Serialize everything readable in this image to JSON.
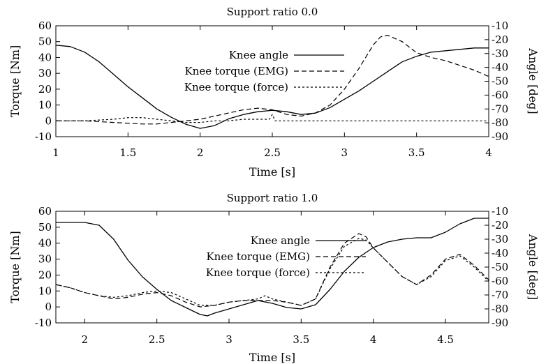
{
  "chart_data": [
    {
      "type": "line",
      "title": "Support ratio 0.0",
      "xlabel": "Time [s]",
      "ylabel_left": "Torque [Nm]",
      "ylabel_right": "Angle [deg]",
      "xlim": [
        1,
        4
      ],
      "ylim_left": [
        -10,
        60
      ],
      "ylim_right": [
        -90,
        -10
      ],
      "xticks": [
        "1",
        "1.5",
        "2",
        "2.5",
        "3",
        "3.5",
        "4"
      ],
      "yticks_left": [
        "-10",
        "0",
        "10",
        "20",
        "30",
        "40",
        "50",
        "60"
      ],
      "yticks_right": [
        "-90",
        "-80",
        "-70",
        "-60",
        "-50",
        "-40",
        "-30",
        "-20",
        "-10"
      ],
      "legend_position": "top-center",
      "series": [
        {
          "name": "Knee angle",
          "axis": "right",
          "style": "solid",
          "x": [
            1.0,
            1.1,
            1.2,
            1.3,
            1.4,
            1.5,
            1.6,
            1.7,
            1.8,
            1.9,
            2.0,
            2.1,
            2.2,
            2.3,
            2.4,
            2.5,
            2.6,
            2.7,
            2.8,
            2.9,
            3.0,
            3.1,
            3.2,
            3.3,
            3.4,
            3.5,
            3.6,
            3.7,
            3.8,
            3.9,
            4.0
          ],
          "y": [
            -24,
            -25,
            -29,
            -36,
            -45,
            -54,
            -62,
            -70,
            -76,
            -81,
            -84,
            -82,
            -77,
            -74,
            -72,
            -71,
            -72,
            -74,
            -73,
            -69,
            -63,
            -57,
            -50,
            -43,
            -36,
            -32,
            -29,
            -28,
            -27,
            -26,
            -26
          ]
        },
        {
          "name": "Knee torque (EMG)",
          "axis": "left",
          "style": "dashed",
          "x": [
            1.0,
            1.2,
            1.4,
            1.6,
            1.7,
            1.8,
            1.9,
            2.0,
            2.1,
            2.2,
            2.3,
            2.4,
            2.5,
            2.6,
            2.7,
            2.8,
            2.9,
            3.0,
            3.1,
            3.2,
            3.25,
            3.3,
            3.4,
            3.5,
            3.6,
            3.7,
            3.8,
            3.9,
            4.0
          ],
          "y": [
            0,
            0,
            -1,
            -2,
            -2,
            -1,
            0,
            1,
            3,
            5,
            7,
            8,
            7,
            4,
            3,
            5,
            10,
            20,
            33,
            48,
            53,
            54,
            50,
            43,
            40,
            38,
            35,
            32,
            28
          ]
        },
        {
          "name": "Knee torque (force)",
          "axis": "left",
          "style": "dotted",
          "x": [
            1.0,
            1.2,
            1.4,
            1.5,
            1.6,
            1.7,
            1.8,
            1.9,
            2.0,
            2.1,
            2.2,
            2.3,
            2.4,
            2.48,
            2.5,
            2.52,
            2.6,
            2.7,
            2.8,
            2.9,
            3.0,
            3.2,
            3.4,
            3.6,
            3.8,
            4.0
          ],
          "y": [
            0,
            0,
            1,
            2,
            2,
            1,
            0,
            -1,
            -1,
            0,
            0,
            1,
            1,
            1,
            4,
            0,
            0,
            0,
            0,
            0,
            0,
            0,
            0,
            0,
            0,
            0
          ]
        }
      ]
    },
    {
      "type": "line",
      "title": "Support ratio 1.0",
      "xlabel": "Time [s]",
      "ylabel_left": "Torque [Nm]",
      "ylabel_right": "Angle [deg]",
      "xlim": [
        1.8,
        4.8
      ],
      "ylim_left": [
        -10,
        60
      ],
      "ylim_right": [
        -90,
        -10
      ],
      "xticks": [
        "2",
        "2.5",
        "3",
        "3.5",
        "4",
        "4.5"
      ],
      "yticks_left": [
        "-10",
        "0",
        "10",
        "20",
        "30",
        "40",
        "50",
        "60"
      ],
      "yticks_right": [
        "-90",
        "-80",
        "-70",
        "-60",
        "-50",
        "-40",
        "-30",
        "-20",
        "-10"
      ],
      "legend_position": "top-center",
      "series": [
        {
          "name": "Knee angle",
          "axis": "right",
          "style": "solid",
          "x": [
            1.8,
            2.0,
            2.1,
            2.2,
            2.3,
            2.4,
            2.5,
            2.6,
            2.7,
            2.8,
            2.85,
            2.9,
            3.0,
            3.1,
            3.2,
            3.3,
            3.4,
            3.5,
            3.6,
            3.7,
            3.8,
            3.9,
            4.0,
            4.1,
            4.2,
            4.3,
            4.4,
            4.5,
            4.6,
            4.7,
            4.8
          ],
          "y": [
            -18,
            -18,
            -20,
            -30,
            -45,
            -57,
            -66,
            -74,
            -79,
            -84,
            -85,
            -83,
            -80,
            -77,
            -74,
            -76,
            -79,
            -80,
            -77,
            -66,
            -53,
            -43,
            -36,
            -32,
            -30,
            -29,
            -29,
            -25,
            -19,
            -15,
            -15
          ]
        },
        {
          "name": "Knee torque (EMG)",
          "axis": "left",
          "style": "dashed",
          "x": [
            1.8,
            1.9,
            2.0,
            2.1,
            2.2,
            2.3,
            2.4,
            2.5,
            2.6,
            2.7,
            2.8,
            2.9,
            3.0,
            3.1,
            3.2,
            3.3,
            3.4,
            3.5,
            3.6,
            3.7,
            3.8,
            3.9,
            3.95,
            4.0,
            4.1,
            4.2,
            4.3,
            4.4,
            4.5,
            4.6,
            4.7,
            4.8
          ],
          "y": [
            14,
            12,
            9,
            7,
            5,
            6,
            8,
            9,
            7,
            3,
            0,
            1,
            3,
            4,
            4,
            4,
            3,
            1,
            5,
            25,
            40,
            46,
            44,
            37,
            28,
            19,
            14,
            20,
            30,
            33,
            26,
            17
          ]
        },
        {
          "name": "Knee torque (force)",
          "axis": "left",
          "style": "dotted",
          "x": [
            1.8,
            1.9,
            2.0,
            2.1,
            2.2,
            2.3,
            2.4,
            2.5,
            2.6,
            2.7,
            2.8,
            2.9,
            3.0,
            3.1,
            3.2,
            3.25,
            3.3,
            3.4,
            3.5,
            3.6,
            3.7,
            3.8,
            3.9,
            3.95,
            4.0,
            4.1,
            4.2,
            4.3,
            4.4,
            4.5,
            4.6,
            4.7,
            4.8
          ],
          "y": [
            14,
            12,
            9,
            7,
            6,
            7,
            9,
            10,
            9,
            5,
            1,
            1,
            3,
            4,
            5,
            7,
            5,
            3,
            1,
            5,
            24,
            38,
            43,
            42,
            37,
            28,
            19,
            14,
            19,
            29,
            32,
            25,
            16
          ]
        }
      ]
    }
  ]
}
